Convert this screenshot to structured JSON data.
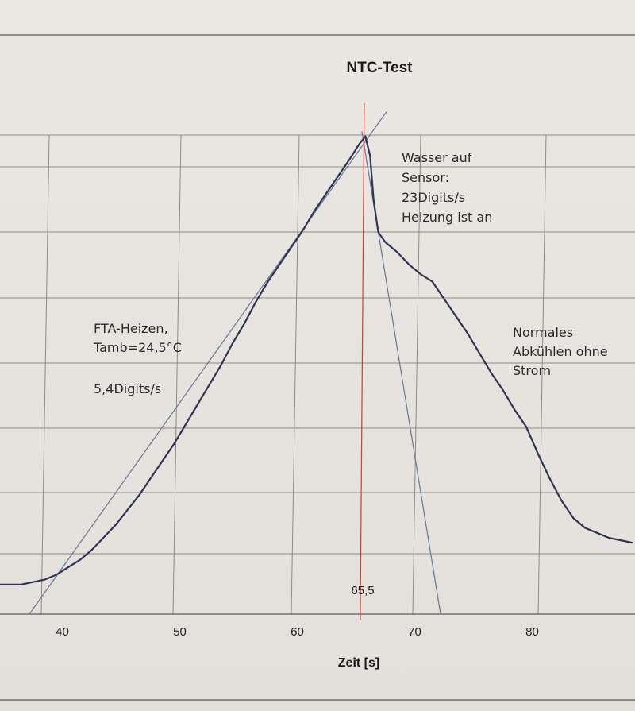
{
  "chart_data": {
    "type": "line",
    "title": "NTC-Test",
    "xlabel": "Zeit [s]",
    "ylabel": "",
    "xlim": [
      34.5,
      88.5
    ],
    "x_ticks": [
      40,
      50,
      60,
      70,
      80
    ],
    "x_tick_labels": [
      "40",
      "50",
      "60",
      "70",
      "80"
    ],
    "grid": true,
    "series": [
      {
        "x": [
          34.5,
          36.5,
          37.5,
          38.5,
          39.5,
          40.5,
          41.5,
          42.5,
          43.5,
          44.5,
          45.5,
          46.5,
          47.5,
          48.5,
          49.5,
          50.5,
          51.5,
          52.5,
          53.5,
          54.5,
          55.5,
          56.5,
          57.5,
          58.5,
          59.5,
          60.5,
          61.5,
          62.5,
          63.5,
          64.5,
          65.3,
          65.8,
          66.2,
          66.5,
          66.9,
          67.5,
          68.5,
          69.5,
          70.5,
          71.5,
          72.5,
          73.5,
          74.5,
          75.5,
          76.5,
          77.5,
          78.5,
          79.5,
          80.5,
          81.5,
          82.5,
          83.5,
          84.5,
          85.5,
          86.5,
          87.5,
          88.5
        ],
        "y": [
          6,
          6,
          6.5,
          7,
          8,
          9.5,
          11,
          13,
          15.5,
          18,
          21,
          24,
          27.5,
          31,
          34.5,
          38.5,
          42.5,
          46.5,
          50.5,
          55,
          59,
          63.5,
          67.5,
          71,
          74.5,
          78,
          82,
          85.5,
          89,
          92.5,
          95.5,
          97,
          93,
          84,
          77.5,
          75.5,
          73.5,
          71,
          69,
          67.5,
          64,
          60.5,
          57,
          53,
          49,
          45.5,
          41.5,
          38,
          32.5,
          27.5,
          23,
          19.5,
          17.5,
          16.5,
          15.5,
          15,
          14.5
        ]
      }
    ],
    "guides": {
      "heating_tangent": {
        "x": [
          37.2,
          67.6
        ],
        "y": [
          0,
          102
        ]
      },
      "cooling_tangent": {
        "x": [
          65.5,
          72.2
        ],
        "y": [
          98,
          0
        ]
      },
      "vertical_marker_x": 65.5,
      "vertical_marker_color": "#d63a3a"
    },
    "annotations": {
      "peak_label": "65,5",
      "heating_line1": "FTA-Heizen,",
      "heating_line2": "Tamb=24,5°C",
      "heating_rate": "5,4Digits/s",
      "water_line1": "Wasser auf",
      "water_line2": "Sensor:",
      "water_line3": "23Digits/s",
      "water_line4": "Heizung ist an",
      "cooling_line1": "Normales",
      "cooling_line2": "Abkühlen ohne",
      "cooling_line3": "Strom"
    },
    "colors": {
      "curve": "#2f3550",
      "tangent": "#6f7e98",
      "grid": "#8e8b88"
    }
  }
}
